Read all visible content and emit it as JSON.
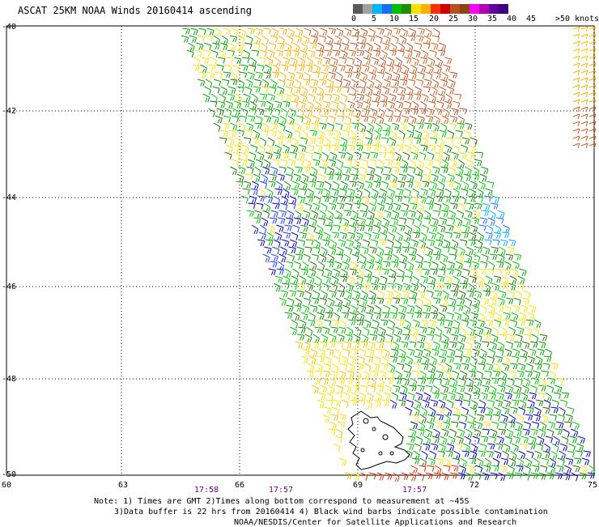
{
  "title": "ASCAT 25KM NOAA Winds 20160414 ascending",
  "legend": {
    "labels": [
      "0",
      "5",
      "10",
      "15",
      "20",
      "25",
      "30",
      "35",
      "40",
      "45",
      ">50 knots"
    ],
    "colors": [
      "#5a5a5a",
      "#a0a0a0",
      "#00b4ff",
      "#1a6cff",
      "#00c000",
      "#1e9000",
      "#ffe000",
      "#ffb000",
      "#ff3000",
      "#d00000",
      "#b85020",
      "#8b4513",
      "#ff00ff",
      "#b000b0",
      "#6000a0",
      "#3c0080"
    ]
  },
  "map": {
    "lat_labels": [
      "-40",
      "-42",
      "-44",
      "-46",
      "-48",
      "-50"
    ],
    "lon_labels": [
      "60",
      "63",
      "66",
      "69",
      "72",
      "75"
    ],
    "time_labels": [
      "17:58",
      "17:57",
      "17:57"
    ]
  },
  "notes": {
    "line1": "Note: 1) Times are GMT 2)Times along bottom correspond to measurement at ~45S",
    "line2": "3)Data buffer is 22 hrs from 20160414 4) Black wind barbs indicate possible contamination",
    "line3": "NOAA/NESDIS/Center for Satellite Applications and Research"
  }
}
